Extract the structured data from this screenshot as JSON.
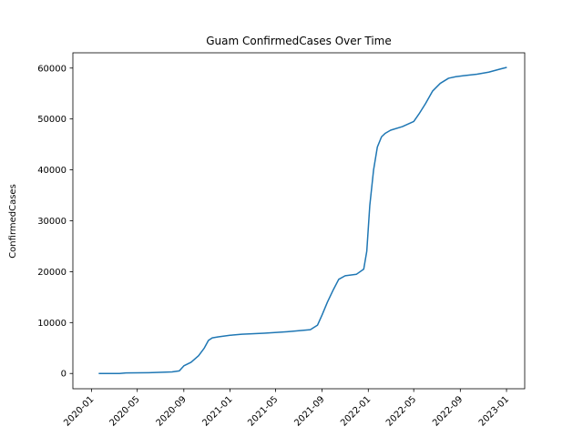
{
  "chart_data": {
    "type": "line",
    "title": "Guam  ConfirmedCases Over Time",
    "xlabel": "",
    "ylabel": "ConfirmedCases",
    "x_ticks": [
      "2020-01",
      "2020-05",
      "2020-09",
      "2021-01",
      "2021-05",
      "2021-09",
      "2022-01",
      "2022-05",
      "2022-09",
      "2023-01"
    ],
    "y_ticks": [
      0,
      10000,
      20000,
      30000,
      40000,
      50000,
      60000
    ],
    "xlim": [
      "2019-11-13",
      "2023-02-18"
    ],
    "ylim": [
      -3000,
      63000
    ],
    "grid": false,
    "series": [
      {
        "color": "#1f77b4",
        "x": [
          "2020-01-22",
          "2020-03-15",
          "2020-04-01",
          "2020-06-01",
          "2020-08-01",
          "2020-08-20",
          "2020-09-01",
          "2020-09-20",
          "2020-10-10",
          "2020-10-25",
          "2020-11-05",
          "2020-11-15",
          "2020-12-01",
          "2021-01-01",
          "2021-02-01",
          "2021-04-01",
          "2021-06-01",
          "2021-08-01",
          "2021-08-20",
          "2021-09-01",
          "2021-09-15",
          "2021-10-01",
          "2021-10-15",
          "2021-11-01",
          "2021-12-01",
          "2021-12-20",
          "2021-12-28",
          "2022-01-05",
          "2022-01-15",
          "2022-01-25",
          "2022-02-05",
          "2022-02-15",
          "2022-03-01",
          "2022-04-01",
          "2022-05-01",
          "2022-05-15",
          "2022-06-01",
          "2022-06-20",
          "2022-07-10",
          "2022-08-01",
          "2022-08-20",
          "2022-09-10",
          "2022-10-15",
          "2022-11-15",
          "2022-12-15",
          "2022-12-31"
        ],
        "y": [
          0,
          0,
          100,
          150,
          300,
          500,
          1500,
          2200,
          3500,
          5000,
          6500,
          7000,
          7200,
          7500,
          7700,
          7900,
          8200,
          8600,
          9500,
          11500,
          14000,
          16500,
          18500,
          19200,
          19500,
          20500,
          24000,
          33000,
          40000,
          44500,
          46500,
          47200,
          47800,
          48500,
          49500,
          51000,
          53000,
          55500,
          57000,
          58000,
          58300,
          58500,
          58800,
          59200,
          59800,
          60100
        ]
      }
    ]
  }
}
